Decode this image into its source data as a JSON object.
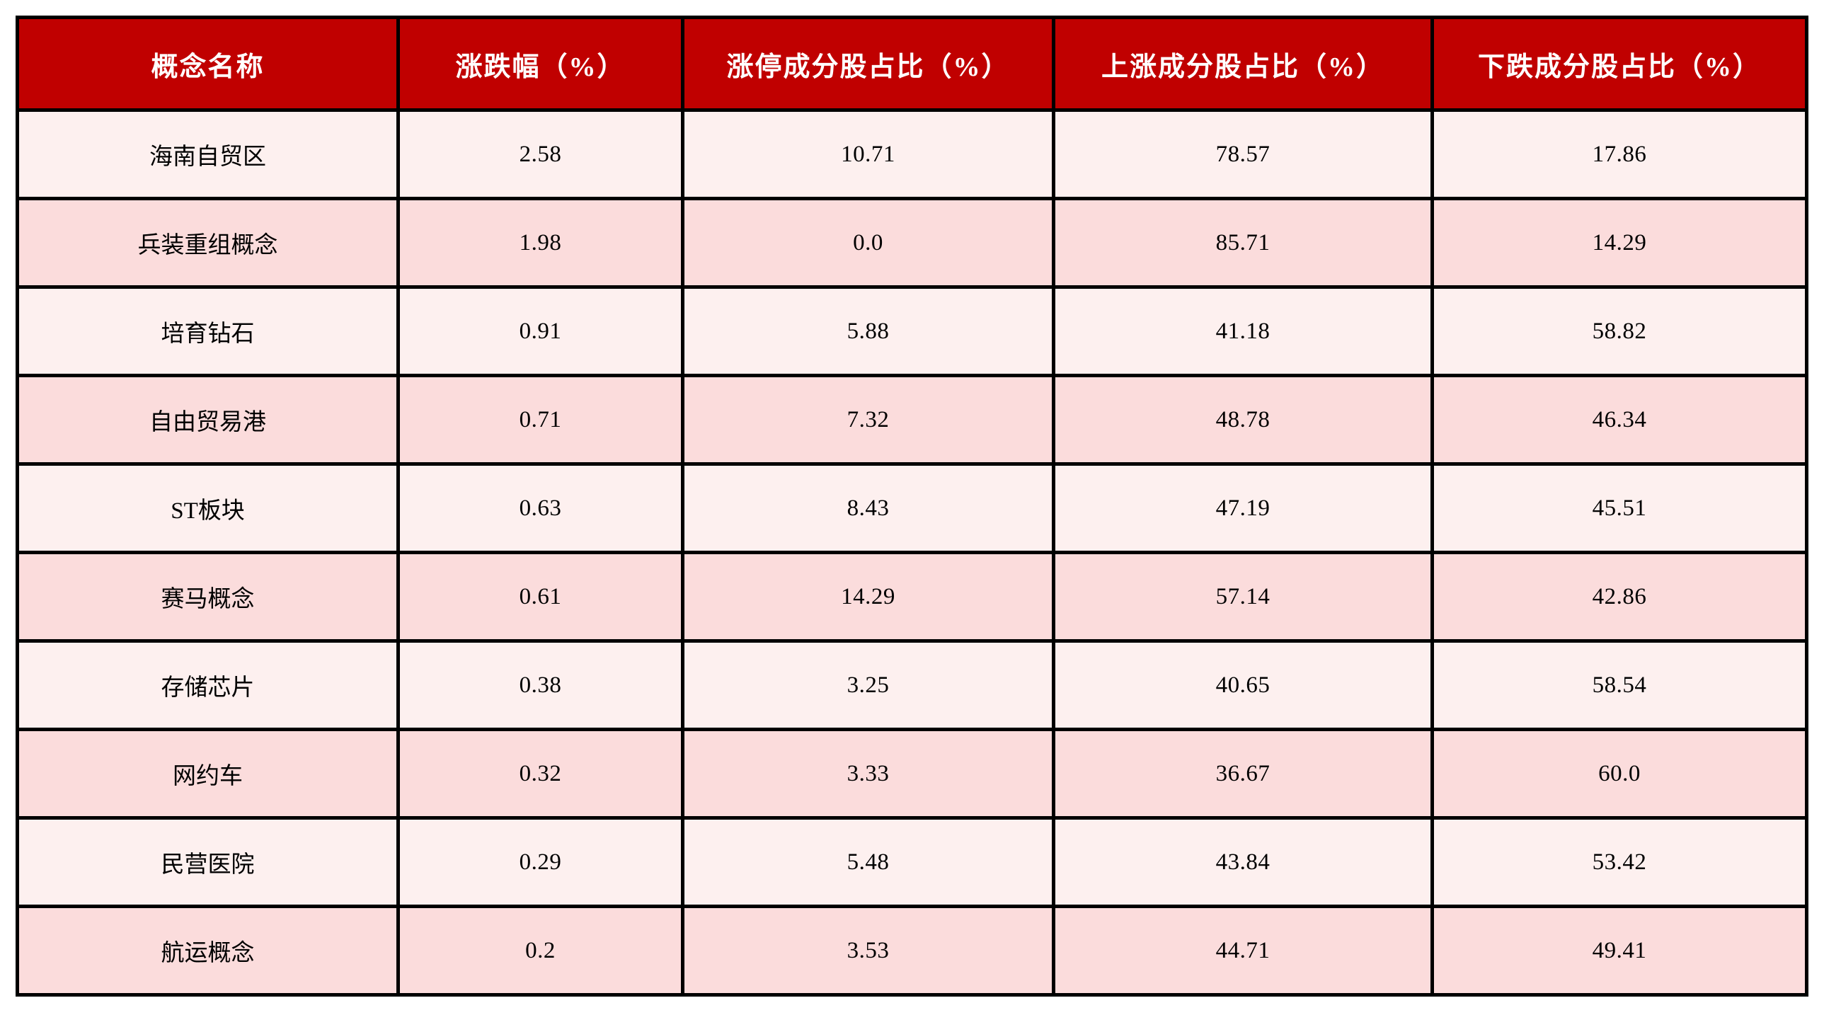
{
  "colors": {
    "header_bg": "#c00000",
    "header_text": "#ffffff",
    "row_odd_bg": "#fdf0ef",
    "row_even_bg": "#fbdcdc",
    "border": "#000000",
    "cell_text": "#000000"
  },
  "chart_data": {
    "type": "table",
    "columns": [
      "概念名称",
      "涨跌幅（%）",
      "涨停成分股占比（%）",
      "上涨成分股占比（%）",
      "下跌成分股占比（%）"
    ],
    "rows": [
      {
        "name": "海南自贸区",
        "change_pct": "2.58",
        "limit_up_pct": "10.71",
        "rising_pct": "78.57",
        "falling_pct": "17.86"
      },
      {
        "name": "兵装重组概念",
        "change_pct": "1.98",
        "limit_up_pct": "0.0",
        "rising_pct": "85.71",
        "falling_pct": "14.29"
      },
      {
        "name": "培育钻石",
        "change_pct": "0.91",
        "limit_up_pct": "5.88",
        "rising_pct": "41.18",
        "falling_pct": "58.82"
      },
      {
        "name": "自由贸易港",
        "change_pct": "0.71",
        "limit_up_pct": "7.32",
        "rising_pct": "48.78",
        "falling_pct": "46.34"
      },
      {
        "name": "ST板块",
        "change_pct": "0.63",
        "limit_up_pct": "8.43",
        "rising_pct": "47.19",
        "falling_pct": "45.51"
      },
      {
        "name": "赛马概念",
        "change_pct": "0.61",
        "limit_up_pct": "14.29",
        "rising_pct": "57.14",
        "falling_pct": "42.86"
      },
      {
        "name": "存储芯片",
        "change_pct": "0.38",
        "limit_up_pct": "3.25",
        "rising_pct": "40.65",
        "falling_pct": "58.54"
      },
      {
        "name": "网约车",
        "change_pct": "0.32",
        "limit_up_pct": "3.33",
        "rising_pct": "36.67",
        "falling_pct": "60.0"
      },
      {
        "name": "民营医院",
        "change_pct": "0.29",
        "limit_up_pct": "5.48",
        "rising_pct": "43.84",
        "falling_pct": "53.42"
      },
      {
        "name": "航运概念",
        "change_pct": "0.2",
        "limit_up_pct": "3.53",
        "rising_pct": "44.71",
        "falling_pct": "49.41"
      }
    ]
  }
}
